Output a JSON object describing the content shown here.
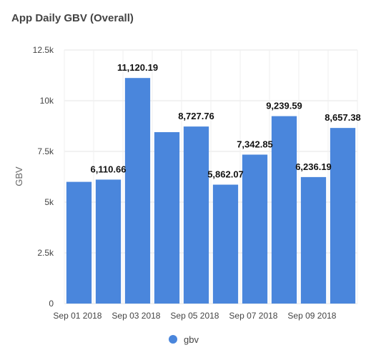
{
  "title": "App Daily GBV (Overall)",
  "chart_data": {
    "type": "bar",
    "title": "App Daily GBV (Overall)",
    "xlabel": "",
    "ylabel": "GBV",
    "ylim": [
      0,
      12500
    ],
    "yticks": [
      0,
      2500,
      5000,
      7500,
      10000,
      12500
    ],
    "ytick_labels": [
      "0",
      "2.5k",
      "5k",
      "7.5k",
      "10k",
      "12.5k"
    ],
    "categories": [
      "Sep 01 2018",
      "Sep 02 2018",
      "Sep 03 2018",
      "Sep 04 2018",
      "Sep 05 2018",
      "Sep 06 2018",
      "Sep 07 2018",
      "Sep 08 2018",
      "Sep 09 2018",
      "Sep 10 2018"
    ],
    "xtick_labels": [
      "Sep 01 2018",
      "",
      "Sep 03 2018",
      "",
      "Sep 05 2018",
      "",
      "Sep 07 2018",
      "",
      "Sep 09 2018",
      ""
    ],
    "series": [
      {
        "name": "gbv",
        "color": "#4a86dc",
        "values": [
          6000,
          6110.66,
          11120.19,
          8450,
          8727.76,
          5862.07,
          7342.85,
          9239.59,
          6236.19,
          8657.38
        ],
        "data_labels": [
          "",
          "6,110.66",
          "11,120.19",
          "",
          "8,727.76",
          "5,862.07",
          "7,342.85",
          "9,239.59",
          "6,236.19",
          "8,657.38"
        ]
      }
    ],
    "grid": true,
    "legend": "bottom-center"
  }
}
